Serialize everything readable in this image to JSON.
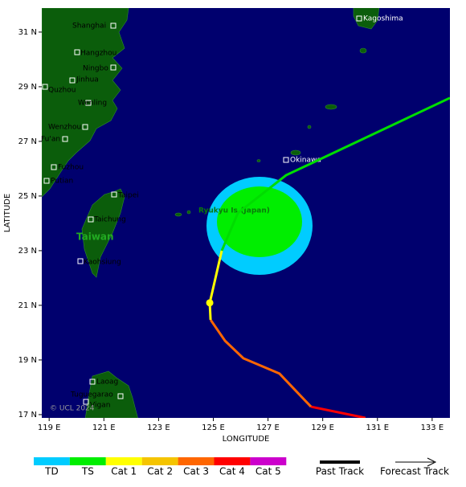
{
  "map": {
    "x_axis_title": "LONGITUDE",
    "y_axis_title": "LATITUDE",
    "lon_range": [
      118.73,
      133.65
    ],
    "lat_range": [
      16.88,
      31.88
    ],
    "x_ticks": [
      {
        "value": 119,
        "label": "119 E"
      },
      {
        "value": 121,
        "label": "121 E"
      },
      {
        "value": 123,
        "label": "123 E"
      },
      {
        "value": 125,
        "label": "125 E"
      },
      {
        "value": 127,
        "label": "127 E"
      },
      {
        "value": 129,
        "label": "129 E"
      },
      {
        "value": 131,
        "label": "131 E"
      },
      {
        "value": 133,
        "label": "133 E"
      }
    ],
    "y_ticks": [
      {
        "value": 17,
        "label": "17 N"
      },
      {
        "value": 19,
        "label": "19 N"
      },
      {
        "value": 21,
        "label": "21 N"
      },
      {
        "value": 23,
        "label": "23 N"
      },
      {
        "value": 25,
        "label": "25 N"
      },
      {
        "value": 27,
        "label": "27 N"
      },
      {
        "value": 29,
        "label": "29 N"
      },
      {
        "value": 31,
        "label": "31 N"
      }
    ],
    "places": [
      "Shanghai",
      "Hangzhou",
      "Ningbo",
      "Jinhua",
      "Quzhou",
      "Wenling",
      "Wenzhou",
      "Fu'an",
      "Fuzhou",
      "Putian",
      "Taipei",
      "Taichung",
      "Taiwan",
      "Kaohsiung",
      "Laoag",
      "Tuguegarao",
      "Vigan",
      "Kagoshima",
      "Okinawa",
      "Ryukyu Is.(Japan)"
    ],
    "track": [
      {
        "color": "#ff0000",
        "lon": [
          130.56,
          128.57
        ],
        "lat": [
          16.88,
          17.29
        ]
      },
      {
        "color": "#ff6600",
        "lon": [
          128.57,
          127.42,
          126.1,
          125.43,
          124.9
        ],
        "lat": [
          17.29,
          18.5,
          19.06,
          19.7,
          20.47
        ]
      },
      {
        "color": "#ffff00",
        "lon": [
          124.9,
          124.87,
          125.31
        ],
        "lat": [
          20.47,
          21.09,
          23.0
        ]
      },
      {
        "color": "#00dd00",
        "lon": [
          125.31,
          125.9,
          127.66,
          133.65
        ],
        "lat": [
          23.0,
          24.38,
          25.76,
          28.59
        ]
      }
    ],
    "current_position": {
      "lon": 124.87,
      "lat": 21.09
    },
    "copyright": "© UCL 2024"
  },
  "legend": {
    "categories": [
      {
        "label": "TD",
        "color": "#00ccff"
      },
      {
        "label": "TS",
        "color": "#00ee00"
      },
      {
        "label": "Cat 1",
        "color": "#ffff00"
      },
      {
        "label": "Cat 2",
        "color": "#f5c400"
      },
      {
        "label": "Cat 3",
        "color": "#ff6600"
      },
      {
        "label": "Cat 4",
        "color": "#ff0000"
      },
      {
        "label": "Cat 5",
        "color": "#cc00cc"
      }
    ],
    "past_track": "Past Track",
    "forecast_track": "Forecast Track"
  }
}
